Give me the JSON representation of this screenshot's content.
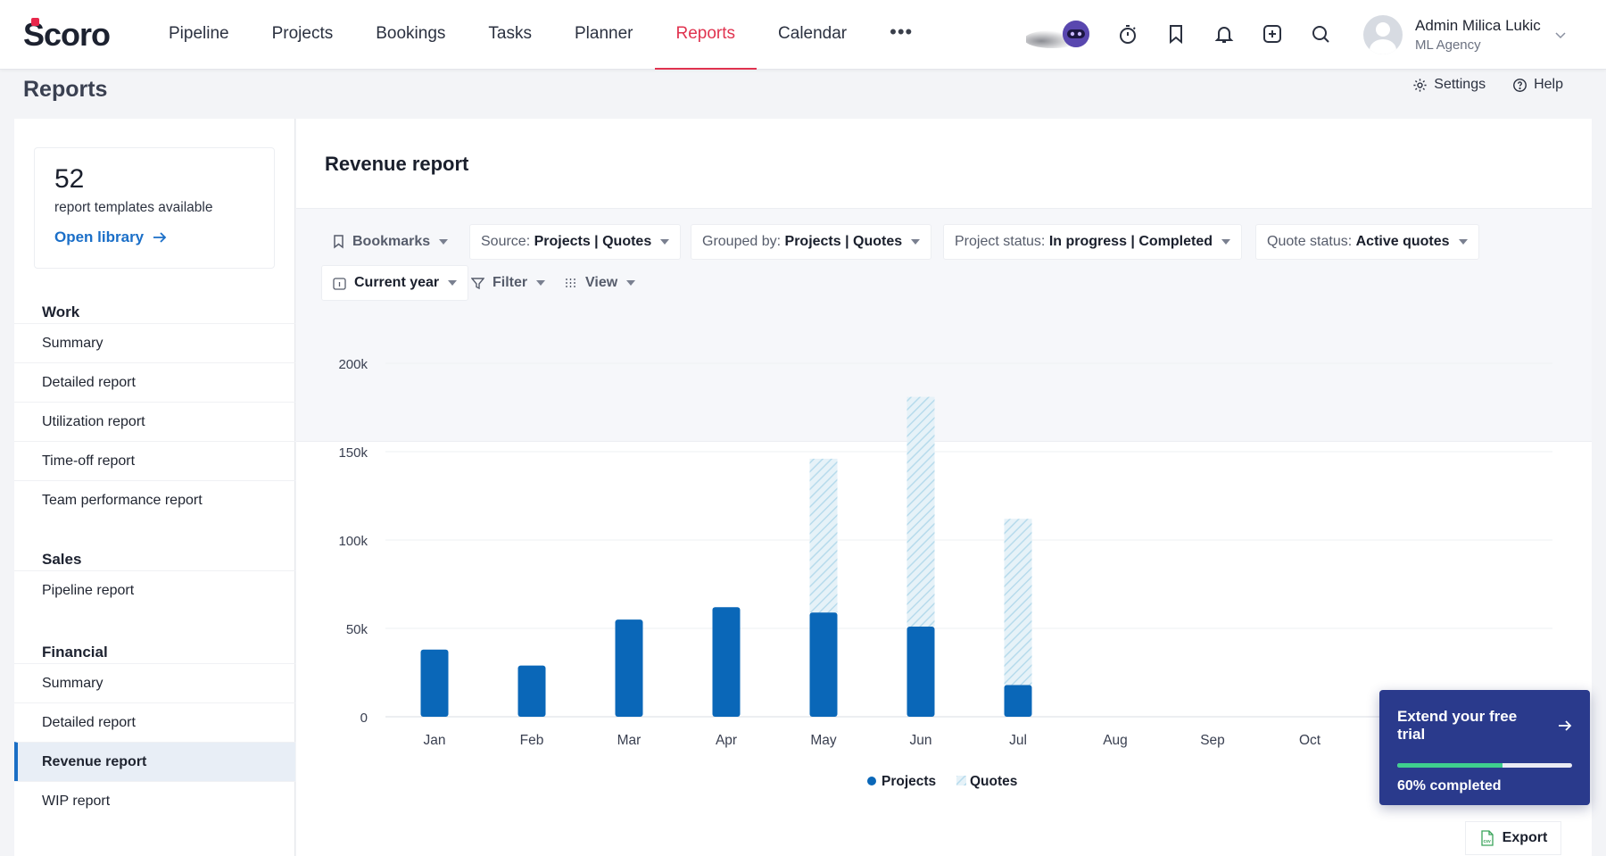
{
  "brand": {
    "logo": "Scoro",
    "accent": "#e0334f",
    "primary_blue": "#0a67b8"
  },
  "nav": {
    "items": [
      {
        "label": "Pipeline"
      },
      {
        "label": "Projects"
      },
      {
        "label": "Bookings"
      },
      {
        "label": "Tasks"
      },
      {
        "label": "Planner"
      },
      {
        "label": "Reports",
        "active": true
      },
      {
        "label": "Calendar"
      }
    ],
    "more_label": "•••"
  },
  "topicons": [
    "ai-bot-icon",
    "timer-icon",
    "bookmark-icon",
    "bell-icon",
    "add-icon",
    "search-icon"
  ],
  "user": {
    "name": "Admin Milica Lukic",
    "org": "ML Agency"
  },
  "page": {
    "title": "Reports",
    "settings_label": "Settings",
    "help_label": "Help"
  },
  "library": {
    "count": "52",
    "text": "report templates available",
    "link": "Open library"
  },
  "sidebar": {
    "sections": [
      {
        "title": "Work",
        "items": [
          "Summary",
          "Detailed report",
          "Utilization report",
          "Time-off report",
          "Team performance report"
        ]
      },
      {
        "title": "Sales",
        "items": [
          "Pipeline report"
        ]
      },
      {
        "title": "Financial",
        "items": [
          "Summary",
          "Detailed report",
          "Revenue report",
          "WIP report"
        ]
      }
    ],
    "active_item": "Revenue report"
  },
  "report": {
    "title": "Revenue report",
    "filters": {
      "bookmarks": "Bookmarks",
      "source_key": "Source:",
      "source_val": "Projects | Quotes",
      "grouped_key": "Grouped by:",
      "grouped_val": "Projects | Quotes",
      "project_status_key": "Project status:",
      "project_status_val": "In progress | Completed",
      "quote_status_key": "Quote status:",
      "quote_status_val": "Active quotes",
      "period": "Current year",
      "filter": "Filter",
      "view": "View"
    }
  },
  "chart_data": {
    "type": "bar",
    "stacked": true,
    "categories": [
      "Jan",
      "Feb",
      "Mar",
      "Apr",
      "May",
      "Jun",
      "Jul",
      "Aug",
      "Sep",
      "Oct"
    ],
    "series": [
      {
        "name": "Projects",
        "values": [
          38000,
          29000,
          55000,
          62000,
          59000,
          51000,
          18000,
          0,
          0,
          0
        ],
        "color": "#0a67b8"
      },
      {
        "name": "Quotes",
        "values": [
          0,
          0,
          0,
          0,
          87000,
          130000,
          94000,
          0,
          0,
          0
        ],
        "color": "#b9dcec"
      }
    ],
    "yticks": [
      "0",
      "50k",
      "100k",
      "150k",
      "200k"
    ],
    "ylim": [
      0,
      200000
    ],
    "grid": true,
    "legend": "bottom-center"
  },
  "trial": {
    "title": "Extend your free trial",
    "progress": 0.6,
    "text": "60% completed"
  },
  "export_label": "Export"
}
